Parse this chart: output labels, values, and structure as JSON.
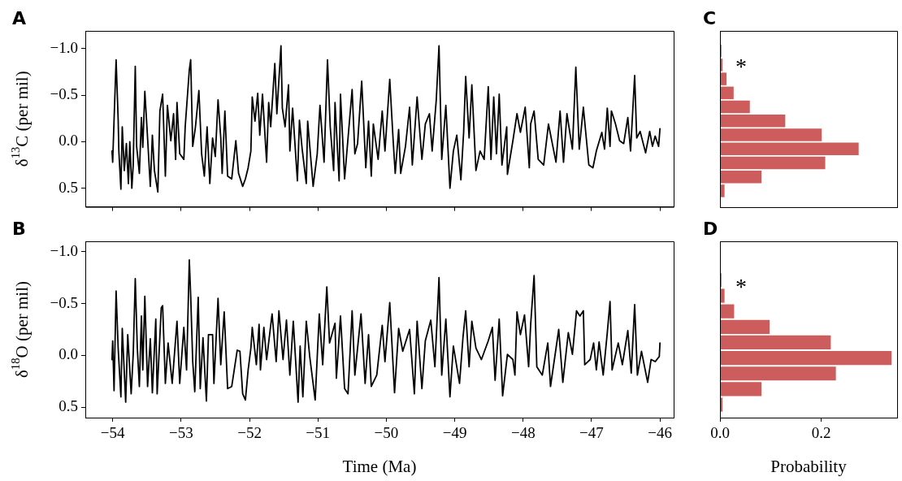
{
  "chart_data": [
    {
      "type": "line",
      "title": "A",
      "ylabel": "δ$^{13}$C (per mil)",
      "color": "#000000",
      "xlim": [
        -54.4,
        -45.8
      ],
      "xticks": [
        -54,
        -53,
        -52,
        -51,
        -50,
        -49,
        -48,
        -47,
        -46
      ],
      "ylim": [
        0.7,
        -1.19
      ],
      "yticks": [
        {
          "value": -1,
          "label": "−1.0"
        },
        {
          "value": -0.5,
          "label": "−0.5"
        },
        {
          "value": 0,
          "label": "0.0"
        },
        {
          "value": 0.5,
          "label": "0.5"
        }
      ],
      "tick_labels": "y",
      "x": [
        -54.01,
        -54.0,
        -53.98,
        -53.95,
        -53.92,
        -53.91,
        -53.88,
        -53.86,
        -53.83,
        -53.8,
        -53.77,
        -53.75,
        -53.72,
        -53.7,
        -53.67,
        -53.65,
        -53.61,
        -53.58,
        -53.56,
        -53.53,
        -53.49,
        -53.45,
        -53.42,
        -53.39,
        -53.34,
        -53.31,
        -53.27,
        -53.23,
        -53.2,
        -53.15,
        -53.11,
        -53.08,
        -53.06,
        -53.02,
        -52.96,
        -52.94,
        -52.88,
        -52.86,
        -52.83,
        -52.79,
        -52.76,
        -52.74,
        -52.7,
        -52.66,
        -52.62,
        -52.58,
        -52.54,
        -52.5,
        -52.46,
        -52.42,
        -52.4,
        -52.36,
        -52.32,
        -52.26,
        -52.2,
        -52.16,
        -52.1,
        -52.06,
        -52.02,
        -51.98,
        -51.96,
        -51.92,
        -51.88,
        -51.85,
        -51.81,
        -51.75,
        -51.72,
        -51.69,
        -51.63,
        -51.6,
        -51.54,
        -51.52,
        -51.48,
        -51.43,
        -51.41,
        -51.37,
        -51.3,
        -51.27,
        -51.23,
        -51.17,
        -51.15,
        -51.07,
        -51.01,
        -50.97,
        -50.91,
        -50.86,
        -50.82,
        -50.77,
        -50.75,
        -50.69,
        -50.67,
        -50.61,
        -50.5,
        -50.46,
        -50.42,
        -50.36,
        -50.3,
        -50.26,
        -50.22,
        -50.19,
        -50.12,
        -50.06,
        -50.02,
        -49.95,
        -49.9,
        -49.87,
        -49.82,
        -49.79,
        -49.72,
        -49.66,
        -49.62,
        -49.55,
        -49.48,
        -49.43,
        -49.37,
        -49.33,
        -49.27,
        -49.23,
        -49.19,
        -49.13,
        -49.07,
        -49.02,
        -48.97,
        -48.91,
        -48.87,
        -48.84,
        -48.79,
        -48.75,
        -48.69,
        -48.63,
        -48.57,
        -48.51,
        -48.47,
        -48.43,
        -48.39,
        -48.35,
        -48.31,
        -48.24,
        -48.23,
        -48.15,
        -48.09,
        -48.04,
        -47.97,
        -47.91,
        -47.89,
        -47.84,
        -47.78,
        -47.7,
        -47.63,
        -47.52,
        -47.46,
        -47.41,
        -47.36,
        -47.28,
        -47.23,
        -47.18,
        -47.12,
        -47.04,
        -46.98,
        -46.93,
        -46.85,
        -46.81,
        -46.77,
        -46.73,
        -46.71,
        -46.65,
        -46.59,
        -46.53,
        -46.47,
        -46.43,
        -46.37,
        -46.34,
        -46.29,
        -46.21,
        -46.15,
        -46.11,
        -46.07,
        -46.02,
        -46.0
      ],
      "values": [
        0.1,
        0.22,
        -0.23,
        -0.88,
        -0.24,
        0.1,
        0.51,
        -0.16,
        0.31,
        0.02,
        0.45,
        0.0,
        0.5,
        0.25,
        -0.81,
        0.05,
        0.34,
        -0.26,
        0.06,
        -0.54,
        -0.04,
        0.48,
        -0.07,
        0.31,
        0.54,
        -0.33,
        -0.51,
        0.37,
        -0.39,
        -0.01,
        -0.3,
        0.19,
        -0.42,
        0.13,
        0.19,
        -0.16,
        -0.77,
        -0.88,
        0.05,
        -0.16,
        -0.39,
        -0.55,
        0.13,
        0.37,
        -0.16,
        0.45,
        -0.04,
        0.16,
        -0.45,
        -0.04,
        0.34,
        -0.33,
        0.37,
        0.4,
        -0.01,
        0.34,
        0.48,
        0.4,
        0.28,
        0.1,
        -0.48,
        -0.22,
        -0.52,
        -0.07,
        -0.51,
        0.22,
        -0.42,
        -0.16,
        -0.84,
        -0.3,
        -1.03,
        -0.36,
        -0.16,
        -0.61,
        0.1,
        -0.36,
        0.42,
        -0.23,
        0.08,
        0.45,
        -0.22,
        0.48,
        0.13,
        -0.39,
        0.22,
        -0.88,
        -0.16,
        0.31,
        -0.42,
        0.42,
        -0.51,
        0.4,
        -0.56,
        0.13,
        0.02,
        -0.65,
        0.28,
        -0.22,
        0.37,
        -0.19,
        0.19,
        -0.33,
        0.1,
        -0.67,
        -0.01,
        0.34,
        -0.13,
        0.34,
        0.05,
        -0.37,
        0.25,
        -0.48,
        0.19,
        -0.19,
        -0.3,
        0.1,
        -0.45,
        -1.03,
        0.19,
        -0.39,
        0.5,
        0.1,
        -0.07,
        0.41,
        -0.1,
        -0.7,
        -0.04,
        -0.61,
        0.31,
        0.1,
        0.19,
        -0.59,
        0.19,
        -0.48,
        0.13,
        -0.51,
        0.25,
        -0.16,
        0.35,
        -0.01,
        -0.3,
        -0.1,
        -0.37,
        0.28,
        -0.19,
        -0.33,
        0.19,
        0.25,
        -0.19,
        0.22,
        -0.33,
        0.22,
        -0.3,
        0.08,
        -0.8,
        0.08,
        -0.37,
        0.25,
        0.28,
        0.1,
        -0.1,
        0.08,
        -0.36,
        0.05,
        -0.33,
        -0.19,
        -0.01,
        0.02,
        -0.26,
        0.1,
        -0.71,
        -0.04,
        -0.11,
        0.12,
        -0.11,
        0.05,
        -0.06,
        0.05,
        -0.14
      ]
    },
    {
      "type": "line",
      "title": "B",
      "xlabel": "Time (Ma)",
      "ylabel": "δ$^{18}$O (per mil)",
      "color": "#000000",
      "xlim": [
        -54.4,
        -45.8
      ],
      "xticks": [
        {
          "value": -54,
          "label": "−54"
        },
        {
          "value": -53,
          "label": "−53"
        },
        {
          "value": -52,
          "label": "−52"
        },
        {
          "value": -51,
          "label": "−51"
        },
        {
          "value": -50,
          "label": "−50"
        },
        {
          "value": -49,
          "label": "−49"
        },
        {
          "value": -48,
          "label": "−48"
        },
        {
          "value": -47,
          "label": "−47"
        },
        {
          "value": -46,
          "label": "−46"
        }
      ],
      "ylim": [
        0.6,
        -1.1
      ],
      "yticks": [
        {
          "value": -1,
          "label": "−1.0"
        },
        {
          "value": -0.5,
          "label": "−0.5"
        },
        {
          "value": 0,
          "label": "0.0"
        },
        {
          "value": 0.5,
          "label": "0.5"
        }
      ],
      "x": [
        -54.01,
        -54.0,
        -53.98,
        -53.95,
        -53.92,
        -53.88,
        -53.86,
        -53.81,
        -53.78,
        -53.73,
        -53.7,
        -53.67,
        -53.64,
        -53.61,
        -53.58,
        -53.56,
        -53.53,
        -53.49,
        -53.45,
        -53.42,
        -53.37,
        -53.35,
        -53.29,
        -53.27,
        -53.23,
        -53.19,
        -53.13,
        -53.06,
        -53.02,
        -52.96,
        -52.92,
        -52.88,
        -52.86,
        -52.83,
        -52.8,
        -52.75,
        -52.72,
        -52.68,
        -52.63,
        -52.6,
        -52.54,
        -52.52,
        -52.46,
        -52.42,
        -52.37,
        -52.32,
        -52.26,
        -52.18,
        -52.14,
        -52.1,
        -52.06,
        -52.02,
        -51.98,
        -51.96,
        -51.9,
        -51.86,
        -51.84,
        -51.79,
        -51.75,
        -51.67,
        -51.61,
        -51.57,
        -51.51,
        -51.46,
        -51.41,
        -51.36,
        -51.29,
        -51.26,
        -51.22,
        -51.17,
        -51.12,
        -51.04,
        -50.98,
        -50.93,
        -50.87,
        -50.83,
        -50.75,
        -50.73,
        -50.67,
        -50.61,
        -50.56,
        -50.5,
        -50.46,
        -50.37,
        -50.31,
        -50.26,
        -50.22,
        -50.14,
        -50.06,
        -50.02,
        -49.95,
        -49.88,
        -49.82,
        -49.76,
        -49.66,
        -49.59,
        -49.55,
        -49.48,
        -49.43,
        -49.35,
        -49.29,
        -49.23,
        -49.19,
        -49.13,
        -49.07,
        -49.02,
        -48.93,
        -48.88,
        -48.84,
        -48.79,
        -48.75,
        -48.69,
        -48.61,
        -48.51,
        -48.45,
        -48.41,
        -48.35,
        -48.3,
        -48.23,
        -48.15,
        -48.12,
        -48.09,
        -48.04,
        -47.98,
        -47.92,
        -47.89,
        -47.84,
        -47.8,
        -47.72,
        -47.64,
        -47.6,
        -47.48,
        -47.42,
        -47.34,
        -47.28,
        -47.22,
        -47.17,
        -47.12,
        -47.1,
        -47.02,
        -46.97,
        -46.93,
        -46.89,
        -46.83,
        -46.77,
        -46.73,
        -46.7,
        -46.61,
        -46.55,
        -46.47,
        -46.42,
        -46.37,
        -46.33,
        -46.27,
        -46.18,
        -46.13,
        -46.07,
        -46.01,
        -46.0
      ],
      "values": [
        0.04,
        -0.14,
        0.34,
        -0.62,
        -0.07,
        0.4,
        -0.26,
        0.45,
        -0.2,
        0.37,
        -0.01,
        -0.74,
        -0.07,
        0.3,
        -0.38,
        0.14,
        -0.57,
        0.3,
        -0.16,
        0.36,
        -0.35,
        0.37,
        -0.46,
        -0.48,
        0.27,
        -0.12,
        0.27,
        -0.33,
        0.27,
        -0.27,
        0.14,
        -0.92,
        -0.58,
        0.06,
        0.35,
        -0.56,
        0.32,
        -0.17,
        0.44,
        -0.2,
        -0.2,
        0.27,
        -0.55,
        0.09,
        -0.42,
        0.32,
        0.3,
        -0.05,
        -0.04,
        0.37,
        0.43,
        0.14,
        -0.07,
        -0.27,
        0.09,
        -0.3,
        0.14,
        -0.27,
        0.04,
        -0.4,
        0.06,
        -0.43,
        0.04,
        -0.34,
        0.19,
        -0.33,
        0.45,
        -0.09,
        0.4,
        -0.33,
        0.01,
        0.43,
        -0.4,
        0.09,
        -0.66,
        -0.12,
        -0.31,
        0.22,
        -0.38,
        0.32,
        0.37,
        -0.43,
        0.19,
        -0.4,
        0.27,
        -0.2,
        0.3,
        0.19,
        -0.29,
        0.06,
        -0.51,
        0.36,
        -0.26,
        -0.04,
        -0.25,
        0.37,
        -0.33,
        0.32,
        -0.14,
        -0.34,
        0.11,
        -0.75,
        0.19,
        -0.35,
        0.4,
        -0.09,
        0.27,
        -0.17,
        -0.43,
        0.11,
        -0.33,
        -0.07,
        0.04,
        -0.14,
        -0.27,
        0.24,
        -0.35,
        0.39,
        -0.01,
        0.04,
        0.19,
        -0.42,
        -0.2,
        -0.39,
        0.11,
        -0.3,
        -0.77,
        0.11,
        0.19,
        -0.12,
        0.3,
        -0.25,
        0.26,
        -0.22,
        -0.01,
        -0.43,
        -0.38,
        -0.43,
        0.09,
        0.04,
        -0.12,
        0.14,
        -0.13,
        0.19,
        -0.22,
        -0.52,
        0.14,
        -0.12,
        0.09,
        -0.24,
        0.17,
        -0.49,
        0.19,
        -0.04,
        0.26,
        0.04,
        0.06,
        0.01,
        -0.12
      ]
    },
    {
      "type": "histogram",
      "title": "C",
      "orientation": "horizontal",
      "color": "#cd5c5c",
      "bins": [
        -1.05,
        -0.9,
        -0.75,
        -0.6,
        -0.45,
        -0.3,
        -0.15,
        0,
        0.15,
        0.3,
        0.45,
        0.6
      ],
      "values": [
        0.003,
        0.005,
        0.013,
        0.027,
        0.059,
        0.129,
        0.201,
        0.274,
        0.208,
        0.082,
        0.009
      ],
      "xlim": [
        0,
        0.35
      ],
      "ylim": [
        0.7,
        -1.19
      ],
      "tick_labels": false,
      "annotations": [
        "*"
      ]
    },
    {
      "type": "histogram",
      "title": "D",
      "orientation": "horizontal",
      "xlabel": "Probability",
      "color": "#cd5c5c",
      "bins": [
        -0.8,
        -0.65,
        -0.5,
        -0.35,
        -0.2,
        -0.05,
        0.1,
        0.25,
        0.4,
        0.55
      ],
      "values": [
        0.003,
        0.009,
        0.028,
        0.098,
        0.219,
        0.339,
        0.229,
        0.082,
        0.005
      ],
      "xlim": [
        0,
        0.35
      ],
      "xticks": [
        {
          "value": 0,
          "label": "0.0"
        },
        {
          "value": 0.2,
          "label": "0.2"
        }
      ],
      "ylim": [
        0.6,
        -1.1
      ],
      "tick_labels": "x",
      "annotations": [
        "*"
      ]
    }
  ]
}
